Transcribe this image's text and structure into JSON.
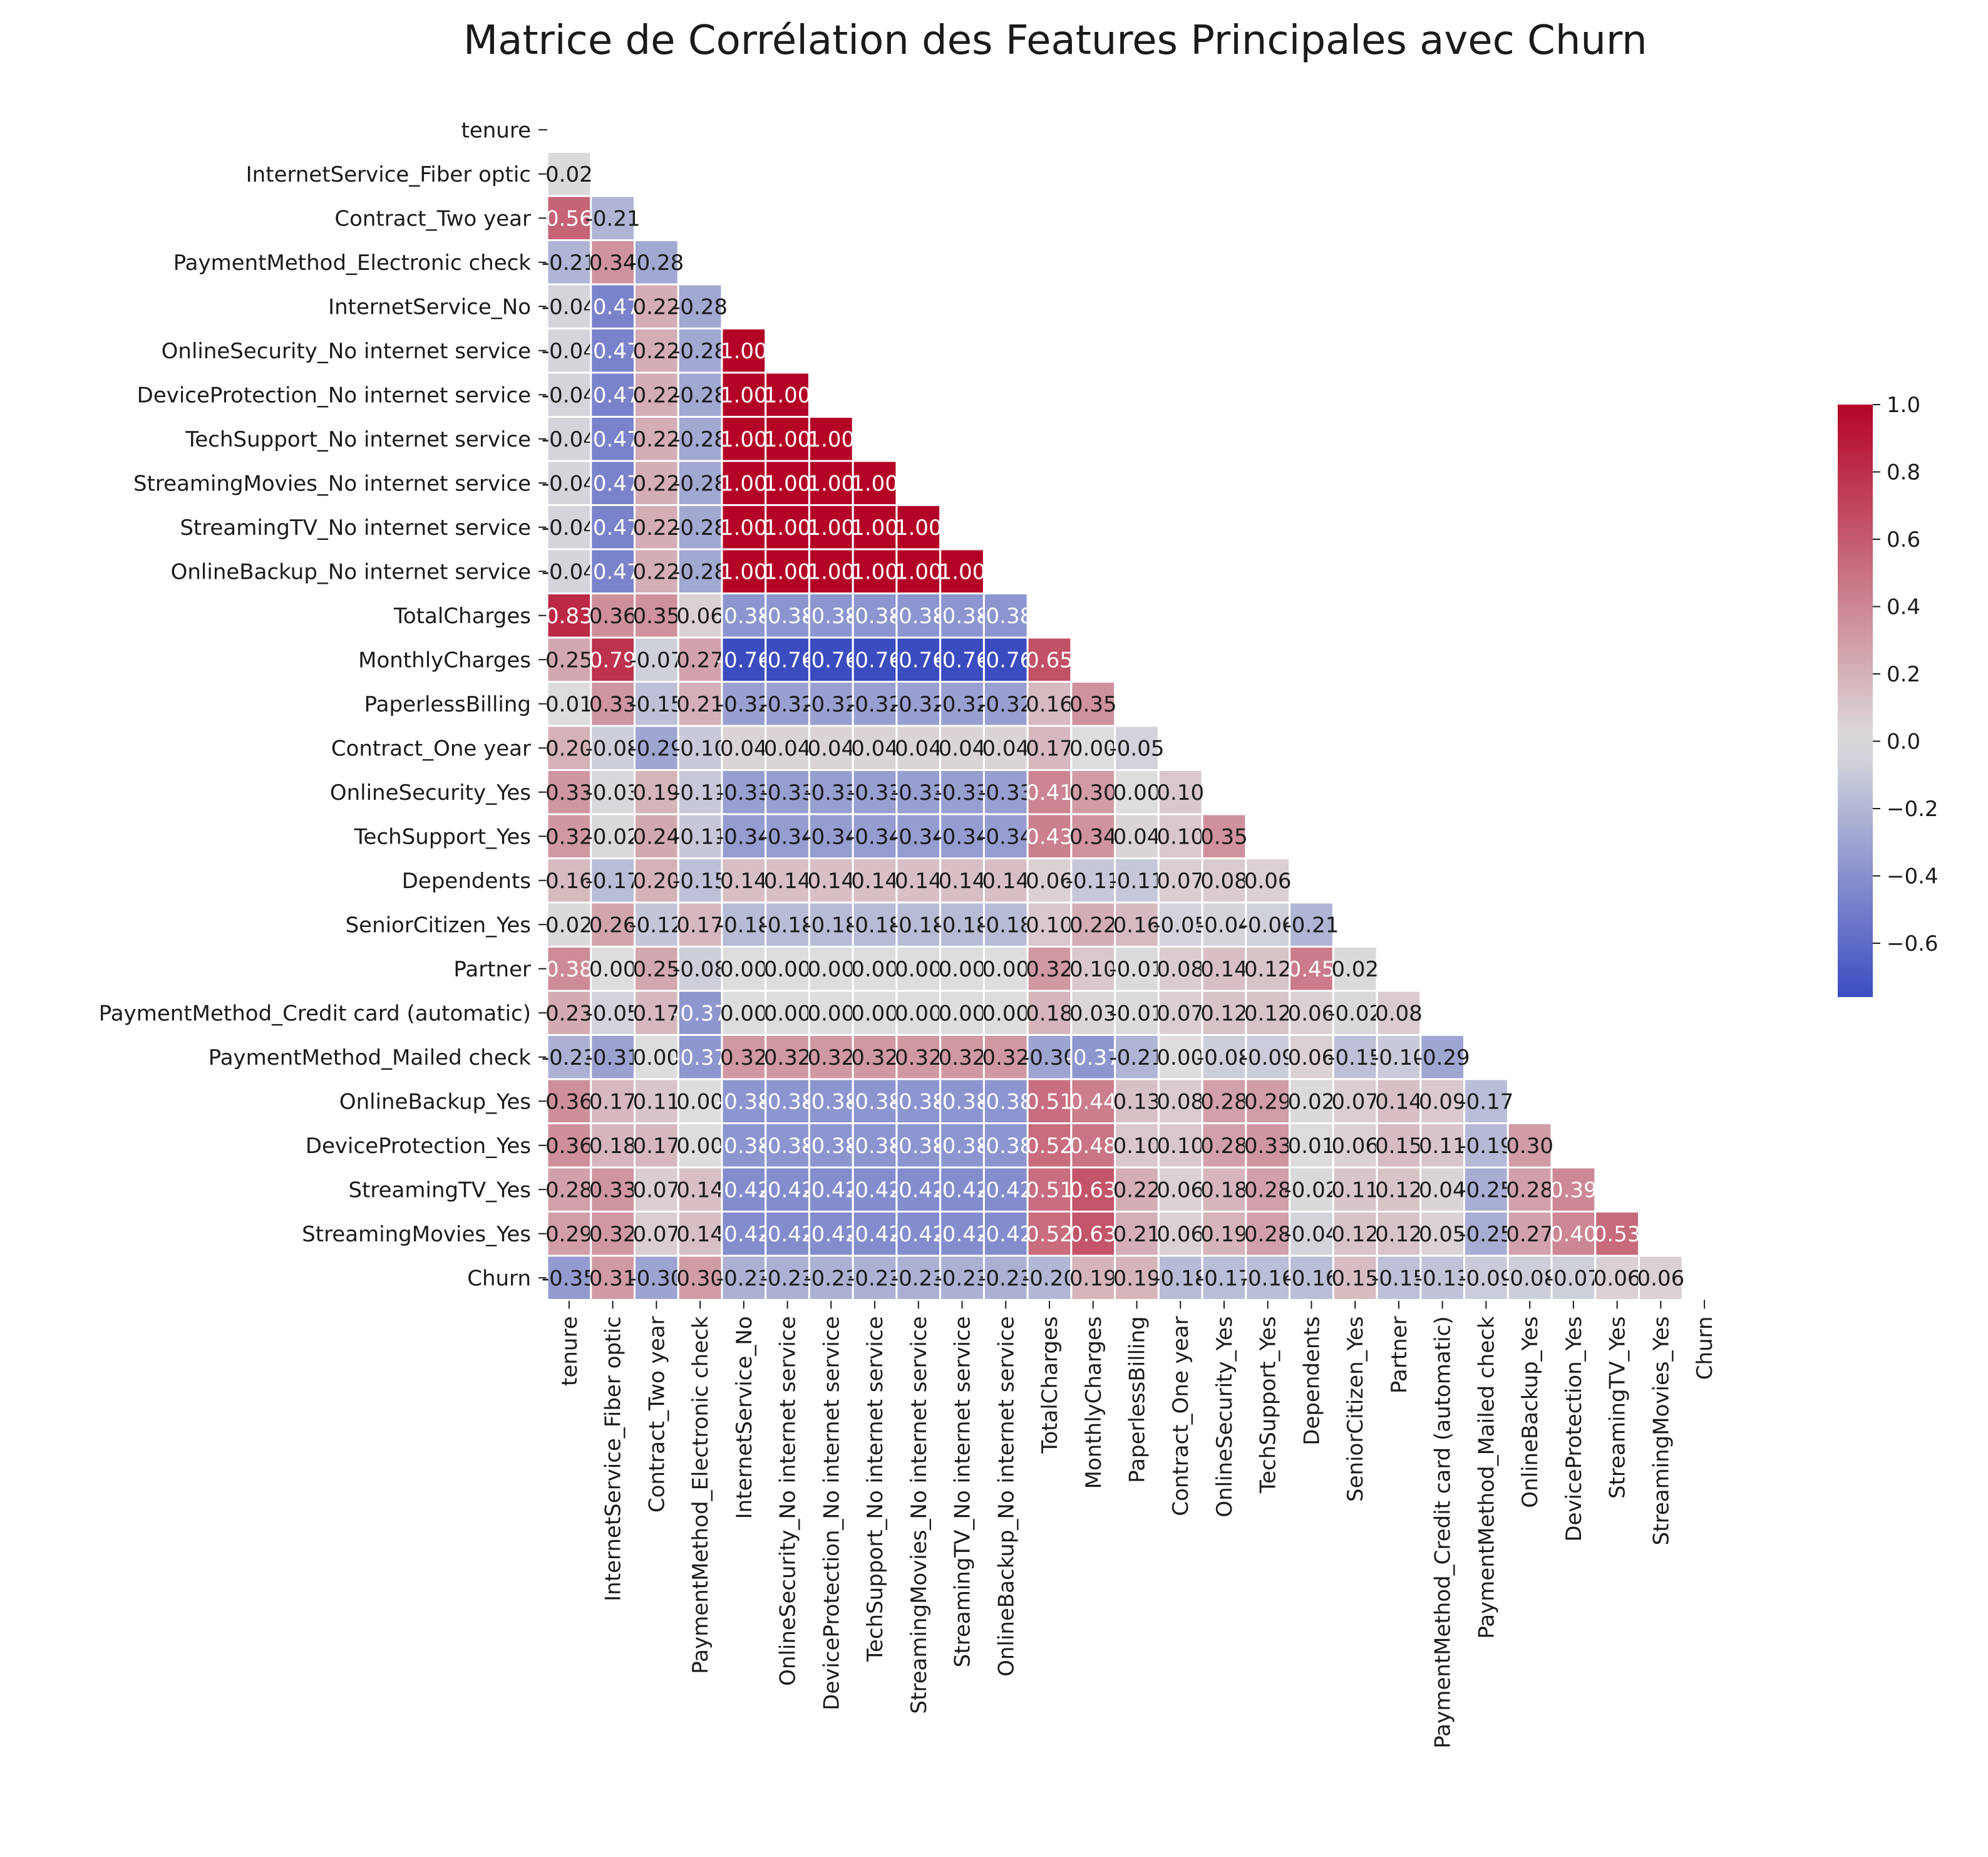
{
  "chart_data": {
    "type": "heatmap",
    "title": "Matrice de Corrélation des Features Principales avec Churn",
    "features": [
      "tenure",
      "InternetService_Fiber optic",
      "Contract_Two year",
      "PaymentMethod_Electronic check",
      "InternetService_No",
      "OnlineSecurity_No internet service",
      "DeviceProtection_No internet service",
      "TechSupport_No internet service",
      "StreamingMovies_No internet service",
      "StreamingTV_No internet service",
      "OnlineBackup_No internet service",
      "TotalCharges",
      "MonthlyCharges",
      "PaperlessBilling",
      "Contract_One year",
      "OnlineSecurity_Yes",
      "TechSupport_Yes",
      "Dependents",
      "SeniorCitizen_Yes",
      "Partner",
      "PaymentMethod_Credit card (automatic)",
      "PaymentMethod_Mailed check",
      "OnlineBackup_Yes",
      "DeviceProtection_Yes",
      "StreamingTV_Yes",
      "StreamingMovies_Yes",
      "Churn"
    ],
    "lower_triangle": [
      [],
      [
        0.02
      ],
      [
        0.56,
        -0.21
      ],
      [
        -0.21,
        0.34,
        -0.28
      ],
      [
        -0.04,
        -0.47,
        0.22,
        -0.28
      ],
      [
        -0.04,
        -0.47,
        0.22,
        -0.28,
        1.0
      ],
      [
        -0.04,
        -0.47,
        0.22,
        -0.28,
        1.0,
        1.0
      ],
      [
        -0.04,
        -0.47,
        0.22,
        -0.28,
        1.0,
        1.0,
        1.0
      ],
      [
        -0.04,
        -0.47,
        0.22,
        -0.28,
        1.0,
        1.0,
        1.0,
        1.0
      ],
      [
        -0.04,
        -0.47,
        0.22,
        -0.28,
        1.0,
        1.0,
        1.0,
        1.0,
        1.0
      ],
      [
        -0.04,
        -0.47,
        0.22,
        -0.28,
        1.0,
        1.0,
        1.0,
        1.0,
        1.0,
        1.0
      ],
      [
        0.83,
        0.36,
        0.35,
        0.06,
        -0.38,
        -0.38,
        -0.38,
        -0.38,
        -0.38,
        -0.38,
        -0.38
      ],
      [
        0.25,
        0.79,
        -0.07,
        0.27,
        -0.76,
        -0.76,
        -0.76,
        -0.76,
        -0.76,
        -0.76,
        -0.76,
        0.65
      ],
      [
        0.01,
        0.33,
        -0.15,
        0.21,
        -0.32,
        -0.32,
        -0.32,
        -0.32,
        -0.32,
        -0.32,
        -0.32,
        0.16,
        0.35
      ],
      [
        0.2,
        -0.08,
        -0.29,
        -0.1,
        0.04,
        0.04,
        0.04,
        0.04,
        0.04,
        0.04,
        0.04,
        0.17,
        0.0,
        -0.05
      ],
      [
        0.33,
        -0.03,
        0.19,
        -0.11,
        -0.33,
        -0.33,
        -0.33,
        -0.33,
        -0.33,
        -0.33,
        -0.33,
        0.41,
        0.3,
        0.0,
        0.1
      ],
      [
        0.32,
        -0.02,
        0.24,
        -0.11,
        -0.34,
        -0.34,
        -0.34,
        -0.34,
        -0.34,
        -0.34,
        -0.34,
        0.43,
        0.34,
        0.04,
        0.1,
        0.35
      ],
      [
        0.16,
        -0.17,
        0.2,
        -0.15,
        0.14,
        0.14,
        0.14,
        0.14,
        0.14,
        0.14,
        0.14,
        0.06,
        -0.11,
        -0.11,
        0.07,
        0.08,
        0.06
      ],
      [
        0.02,
        0.26,
        -0.12,
        0.17,
        -0.18,
        -0.18,
        -0.18,
        -0.18,
        -0.18,
        -0.18,
        -0.18,
        0.1,
        0.22,
        0.16,
        -0.05,
        -0.04,
        -0.06,
        -0.21
      ],
      [
        0.38,
        0.0,
        0.25,
        -0.08,
        0.0,
        0.0,
        0.0,
        0.0,
        0.0,
        0.0,
        0.0,
        0.32,
        0.1,
        -0.01,
        0.08,
        0.14,
        0.12,
        0.45,
        0.02
      ],
      [
        0.23,
        -0.05,
        0.17,
        -0.37,
        0.0,
        0.0,
        0.0,
        0.0,
        0.0,
        0.0,
        0.0,
        0.18,
        0.03,
        -0.01,
        0.07,
        0.12,
        0.12,
        0.06,
        -0.02,
        0.08
      ],
      [
        -0.23,
        -0.31,
        -0.0,
        -0.37,
        0.32,
        0.32,
        0.32,
        0.32,
        0.32,
        0.32,
        0.32,
        -0.3,
        -0.37,
        -0.21,
        -0.0,
        -0.08,
        -0.09,
        0.06,
        -0.15,
        -0.1,
        -0.29
      ],
      [
        0.36,
        0.17,
        0.11,
        -0.0,
        -0.38,
        -0.38,
        -0.38,
        -0.38,
        -0.38,
        -0.38,
        -0.38,
        0.51,
        0.44,
        0.13,
        0.08,
        0.28,
        0.29,
        0.02,
        0.07,
        0.14,
        0.09,
        -0.17
      ],
      [
        0.36,
        0.18,
        0.17,
        -0.0,
        -0.38,
        -0.38,
        -0.38,
        -0.38,
        -0.38,
        -0.38,
        -0.38,
        0.52,
        0.48,
        0.1,
        0.1,
        0.28,
        0.33,
        0.01,
        0.06,
        0.15,
        0.11,
        -0.19,
        0.3
      ],
      [
        0.28,
        0.33,
        0.07,
        0.14,
        -0.42,
        -0.42,
        -0.42,
        -0.42,
        -0.42,
        -0.42,
        -0.42,
        0.51,
        0.63,
        0.22,
        0.06,
        0.18,
        0.28,
        -0.02,
        0.11,
        0.12,
        0.04,
        -0.25,
        0.28,
        0.39
      ],
      [
        0.29,
        0.32,
        0.07,
        0.14,
        -0.42,
        -0.42,
        -0.42,
        -0.42,
        -0.42,
        -0.42,
        -0.42,
        0.52,
        0.63,
        0.21,
        0.06,
        0.19,
        0.28,
        -0.04,
        0.12,
        0.12,
        0.05,
        -0.25,
        0.27,
        0.4,
        0.53
      ],
      [
        -0.35,
        0.31,
        -0.3,
        0.3,
        -0.23,
        -0.23,
        -0.23,
        -0.23,
        -0.23,
        -0.23,
        -0.23,
        -0.2,
        0.19,
        0.19,
        -0.18,
        -0.17,
        -0.16,
        -0.16,
        0.15,
        -0.15,
        -0.13,
        -0.09,
        -0.08,
        -0.07,
        0.06,
        0.06
      ]
    ],
    "colorbar": {
      "min": -0.76,
      "max": 1.0,
      "ticks": [
        "1.0",
        "0.8",
        "0.6",
        "0.4",
        "0.2",
        "0.0",
        "−0.2",
        "−0.4",
        "−0.6"
      ],
      "colormap": "coolwarm",
      "color_low": "#3b4cc0",
      "color_mid": "#dddddd",
      "color_high": "#b40426"
    },
    "grid": "white cell borders",
    "legend_placement": "right"
  }
}
